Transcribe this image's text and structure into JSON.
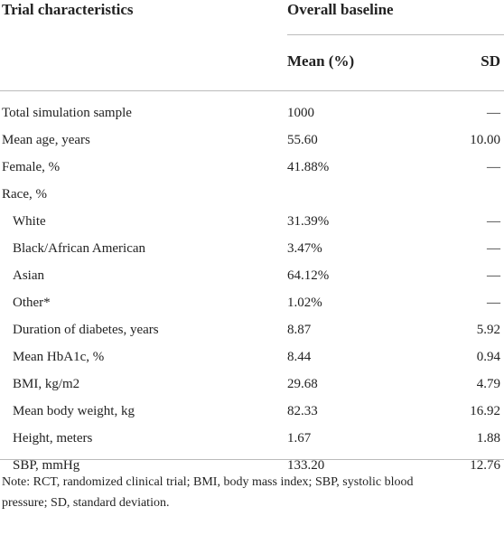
{
  "header": {
    "characteristics": "Trial characteristics",
    "group": "Overall baseline",
    "mean": "Mean (%)",
    "sd": "SD"
  },
  "table": {
    "rows": [
      [
        "Total simulation sample",
        "1000",
        "—"
      ],
      [
        "Mean age, years",
        "55.60",
        "10.00"
      ],
      [
        "Female, %",
        "41.88%",
        "—"
      ],
      [
        "Race, %",
        null,
        null
      ],
      [
        "White",
        "31.39%",
        "—"
      ],
      [
        "Black/African American",
        "3.47%",
        "—"
      ],
      [
        "Asian",
        "64.12%",
        "—"
      ],
      [
        "Other*",
        "1.02%",
        "—"
      ],
      [
        "Duration of diabetes, years",
        "8.87",
        "5.92"
      ],
      [
        "Mean HbA1c, %",
        "8.44",
        "0.94"
      ],
      [
        "BMI, kg/m2",
        "29.68",
        "4.79"
      ],
      [
        "Mean body weight, kg",
        "82.33",
        "16.92"
      ],
      [
        "Height, meters",
        "1.67",
        "1.88"
      ],
      [
        "SBP, mmHg",
        "133.20",
        "12.76"
      ]
    ]
  },
  "note": [
    "Note: RCT, randomized clinical trial; BMI, body mass index; SBP, systolic blood",
    "pressure; SD, standard deviation."
  ]
}
